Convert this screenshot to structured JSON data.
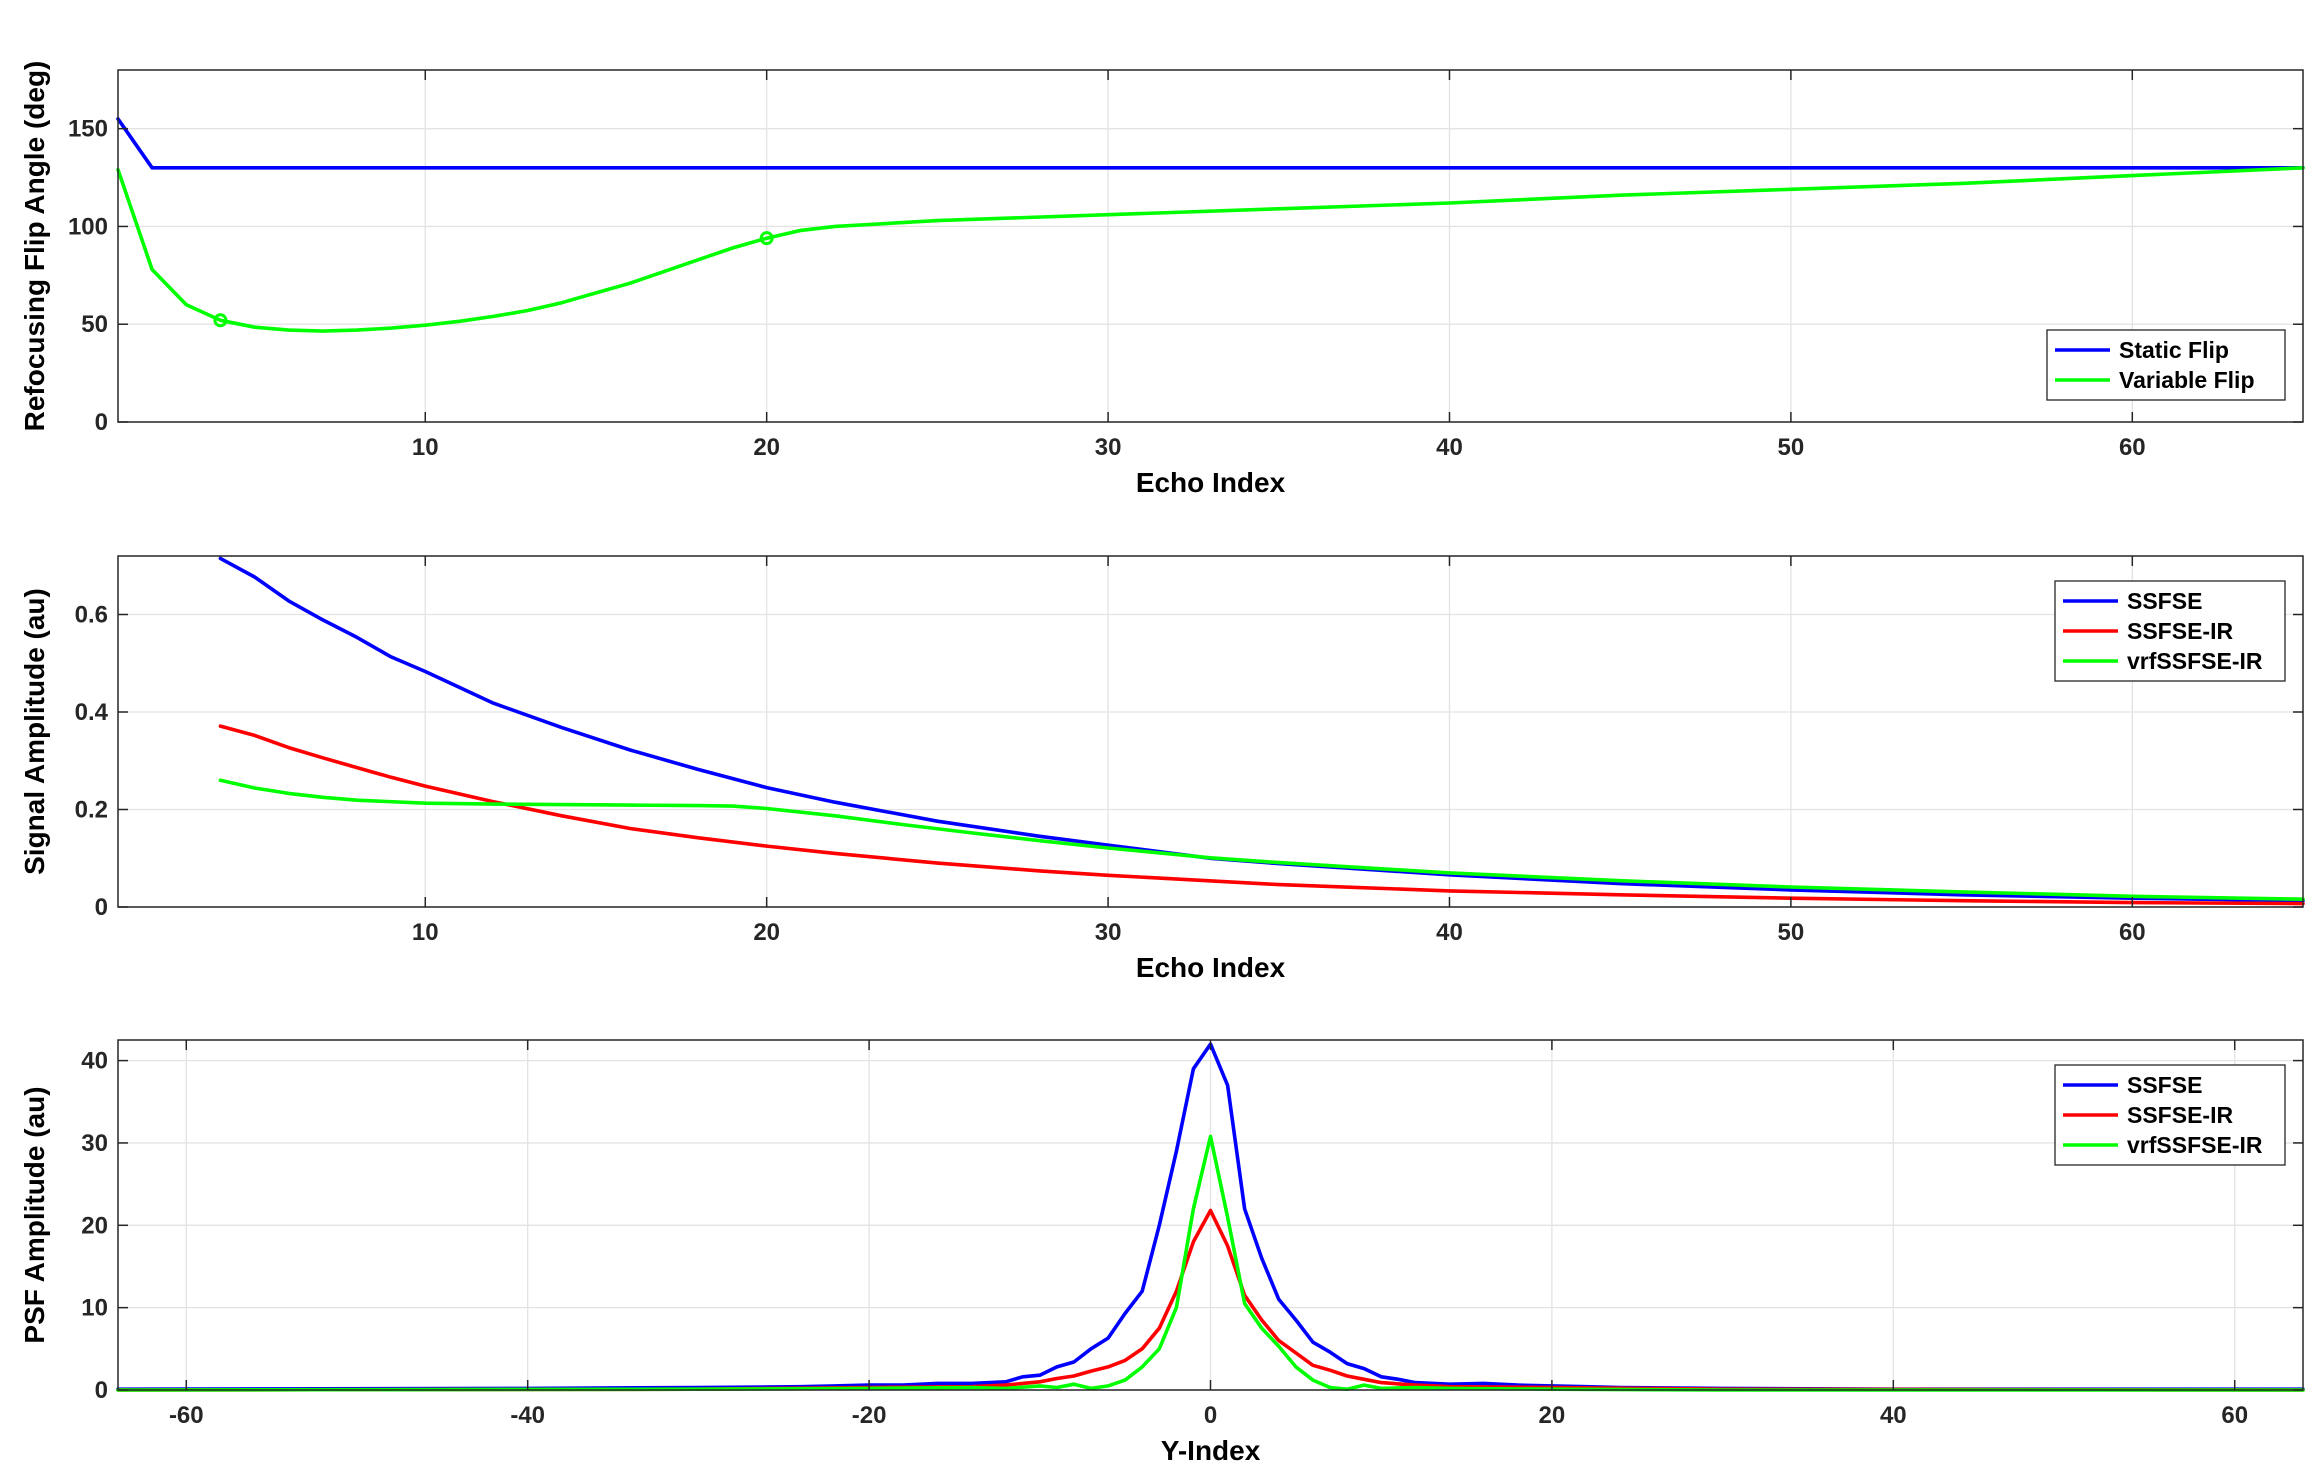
{
  "chart_data": [
    {
      "type": "line",
      "xlabel": "Echo Index",
      "ylabel": "Refocusing Flip Angle (deg)",
      "xlim": [
        1,
        65
      ],
      "ylim": [
        0,
        180
      ],
      "xticks": [
        10,
        20,
        30,
        40,
        50,
        60
      ],
      "yticks": [
        0,
        50,
        100,
        150
      ],
      "grid": true,
      "legend_position": "bottom-right",
      "legend": [
        "Static Flip",
        "Variable Flip"
      ],
      "series": [
        {
          "name": "Static Flip",
          "color": "#0000ff",
          "x": [
            1,
            2,
            3,
            10,
            20,
            30,
            40,
            50,
            60,
            65
          ],
          "y": [
            155,
            130,
            130,
            130,
            130,
            130,
            130,
            130,
            130,
            130
          ]
        },
        {
          "name": "Variable Flip",
          "color": "#00ff00",
          "x": [
            1,
            2,
            3,
            4,
            5,
            6,
            7,
            8,
            9,
            10,
            11,
            12,
            13,
            14,
            15,
            16,
            17,
            18,
            19,
            20,
            21,
            22,
            23,
            25,
            30,
            35,
            40,
            45,
            50,
            55,
            60,
            65
          ],
          "y": [
            129,
            78,
            60,
            52,
            48.5,
            47,
            46.5,
            47,
            48,
            49.5,
            51.5,
            54,
            57,
            61,
            66,
            71,
            77,
            83,
            89,
            94,
            98,
            100,
            101,
            103,
            106,
            109,
            112,
            116,
            119,
            122,
            126,
            130
          ]
        }
      ],
      "markers": [
        {
          "series": "Variable Flip",
          "x": 4,
          "y": 52
        },
        {
          "series": "Variable Flip",
          "x": 20,
          "y": 94
        }
      ]
    },
    {
      "type": "line",
      "xlabel": "Echo Index",
      "ylabel": "Signal Amplitude (au)",
      "xlim": [
        1,
        65
      ],
      "ylim": [
        0,
        0.72
      ],
      "xticks": [
        10,
        20,
        30,
        40,
        50,
        60
      ],
      "yticks": [
        0,
        0.2,
        0.4,
        0.6
      ],
      "grid": true,
      "legend_position": "top-right",
      "legend": [
        "SSFSE",
        "SSFSE-IR",
        "vrfSSFSE-IR"
      ],
      "series": [
        {
          "name": "SSFSE",
          "color": "#0000ff",
          "x": [
            4,
            5,
            6,
            7,
            8,
            9,
            10,
            12,
            14,
            16,
            18,
            20,
            22,
            25,
            28,
            30,
            33,
            35,
            40,
            45,
            50,
            55,
            60,
            65
          ],
          "y": [
            0.715,
            0.677,
            0.628,
            0.589,
            0.553,
            0.513,
            0.483,
            0.418,
            0.368,
            0.322,
            0.282,
            0.245,
            0.215,
            0.176,
            0.145,
            0.127,
            0.1,
            0.089,
            0.066,
            0.048,
            0.035,
            0.025,
            0.018,
            0.013
          ]
        },
        {
          "name": "SSFSE-IR",
          "color": "#ff0000",
          "x": [
            4,
            5,
            6,
            7,
            8,
            9,
            10,
            12,
            14,
            16,
            18,
            20,
            22,
            25,
            28,
            30,
            35,
            40,
            45,
            50,
            55,
            60,
            65
          ],
          "y": [
            0.371,
            0.352,
            0.327,
            0.306,
            0.286,
            0.266,
            0.248,
            0.216,
            0.187,
            0.161,
            0.142,
            0.125,
            0.11,
            0.09,
            0.074,
            0.065,
            0.046,
            0.033,
            0.025,
            0.018,
            0.013,
            0.009,
            0.007
          ]
        },
        {
          "name": "vrfSSFSE-IR",
          "color": "#00ff00",
          "x": [
            4,
            5,
            6,
            7,
            8,
            10,
            12,
            14,
            16,
            18,
            19,
            20,
            22,
            24,
            26,
            28,
            30,
            33,
            35,
            40,
            45,
            50,
            55,
            60,
            65
          ],
          "y": [
            0.26,
            0.244,
            0.233,
            0.225,
            0.219,
            0.213,
            0.211,
            0.21,
            0.209,
            0.208,
            0.207,
            0.202,
            0.187,
            0.169,
            0.152,
            0.136,
            0.121,
            0.101,
            0.091,
            0.07,
            0.054,
            0.041,
            0.031,
            0.022,
            0.016
          ]
        }
      ]
    },
    {
      "type": "line",
      "xlabel": "Y-Index",
      "ylabel": "PSF Amplitude (au)",
      "xlim": [
        -64,
        64
      ],
      "ylim": [
        0,
        42.5
      ],
      "xticks": [
        -60,
        -40,
        -20,
        0,
        20,
        40,
        60
      ],
      "yticks": [
        0,
        10,
        20,
        30,
        40
      ],
      "grid": true,
      "legend_position": "top-right",
      "legend": [
        "SSFSE",
        "SSFSE-IR",
        "vrfSSFSE-IR"
      ],
      "series": [
        {
          "name": "SSFSE",
          "color": "#0000ff",
          "x": [
            -64,
            -40,
            -30,
            -24,
            -22,
            -20,
            -18,
            -16,
            -14,
            -12,
            -11,
            -10,
            -9,
            -8,
            -7,
            -6,
            -5,
            -4,
            -3,
            -2,
            -1,
            0,
            1,
            2,
            3,
            4,
            5,
            6,
            7,
            8,
            9,
            10,
            11,
            12,
            14,
            16,
            18,
            20,
            22,
            24,
            30,
            40,
            64
          ],
          "y": [
            0.1,
            0.2,
            0.3,
            0.4,
            0.5,
            0.6,
            0.6,
            0.8,
            0.8,
            1.0,
            1.6,
            1.8,
            2.8,
            3.4,
            5.0,
            6.3,
            9.3,
            12.0,
            20.0,
            29.0,
            39.0,
            42.0,
            37.0,
            22.0,
            16.0,
            11.0,
            8.5,
            5.8,
            4.6,
            3.2,
            2.6,
            1.6,
            1.3,
            0.9,
            0.7,
            0.8,
            0.6,
            0.5,
            0.4,
            0.3,
            0.2,
            0.1,
            0.1
          ]
        },
        {
          "name": "SSFSE-IR",
          "color": "#ff0000",
          "x": [
            -64,
            -30,
            -20,
            -14,
            -12,
            -10,
            -9,
            -8,
            -7,
            -6,
            -5,
            -4,
            -3,
            -2,
            -1,
            0,
            1,
            2,
            3,
            4,
            5,
            6,
            7,
            8,
            9,
            10,
            12,
            14,
            20,
            30,
            64
          ],
          "y": [
            0.0,
            0.1,
            0.3,
            0.4,
            0.6,
            1.0,
            1.4,
            1.7,
            2.3,
            2.8,
            3.6,
            5.0,
            7.5,
            12.0,
            18.0,
            21.8,
            17.5,
            11.5,
            8.5,
            6.0,
            4.5,
            3.0,
            2.4,
            1.7,
            1.3,
            0.9,
            0.6,
            0.4,
            0.3,
            0.1,
            0.0
          ]
        },
        {
          "name": "vrfSSFSE-IR",
          "color": "#00ff00",
          "x": [
            -64,
            -30,
            -20,
            -14,
            -12,
            -10,
            -9,
            -8,
            -7,
            -6,
            -5,
            -4,
            -3,
            -2,
            -1,
            0,
            1,
            2,
            3,
            4,
            5,
            6,
            7,
            8,
            9,
            10,
            12,
            14,
            20,
            30,
            64
          ],
          "y": [
            0.0,
            0.1,
            0.2,
            0.3,
            0.2,
            0.5,
            0.3,
            0.7,
            0.2,
            0.5,
            1.2,
            2.8,
            5.0,
            10.0,
            22.0,
            30.8,
            21.0,
            10.5,
            7.5,
            5.3,
            2.8,
            1.2,
            0.3,
            0.1,
            0.6,
            0.2,
            0.3,
            0.2,
            0.1,
            0.0,
            0.0
          ]
        }
      ]
    }
  ]
}
